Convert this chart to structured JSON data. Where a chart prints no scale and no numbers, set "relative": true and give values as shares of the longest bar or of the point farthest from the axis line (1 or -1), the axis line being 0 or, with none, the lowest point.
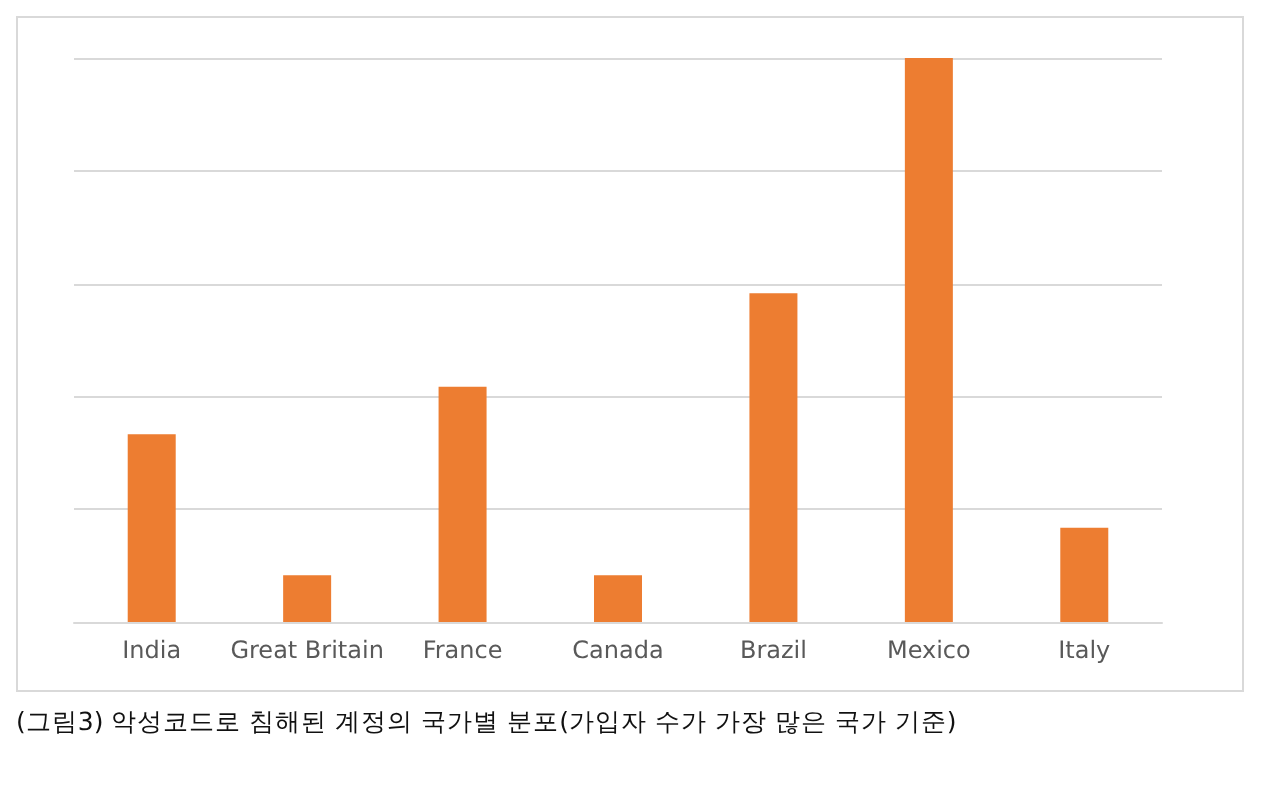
{
  "chart_data": {
    "type": "bar",
    "categories": [
      "India",
      "Great Britain",
      "France",
      "Canada",
      "Brazil",
      "Mexico",
      "Italy"
    ],
    "values": [
      0.333,
      0.083,
      0.417,
      0.083,
      0.583,
      1,
      0.167
    ],
    "color": "#ed7d31",
    "relative": true,
    "grid": "y",
    "annotations": [
      "(그림3) 악성코드로 침해된 계정의 국가별 분포(가입자 수가 가장 많은 국가 기준)"
    ]
  }
}
